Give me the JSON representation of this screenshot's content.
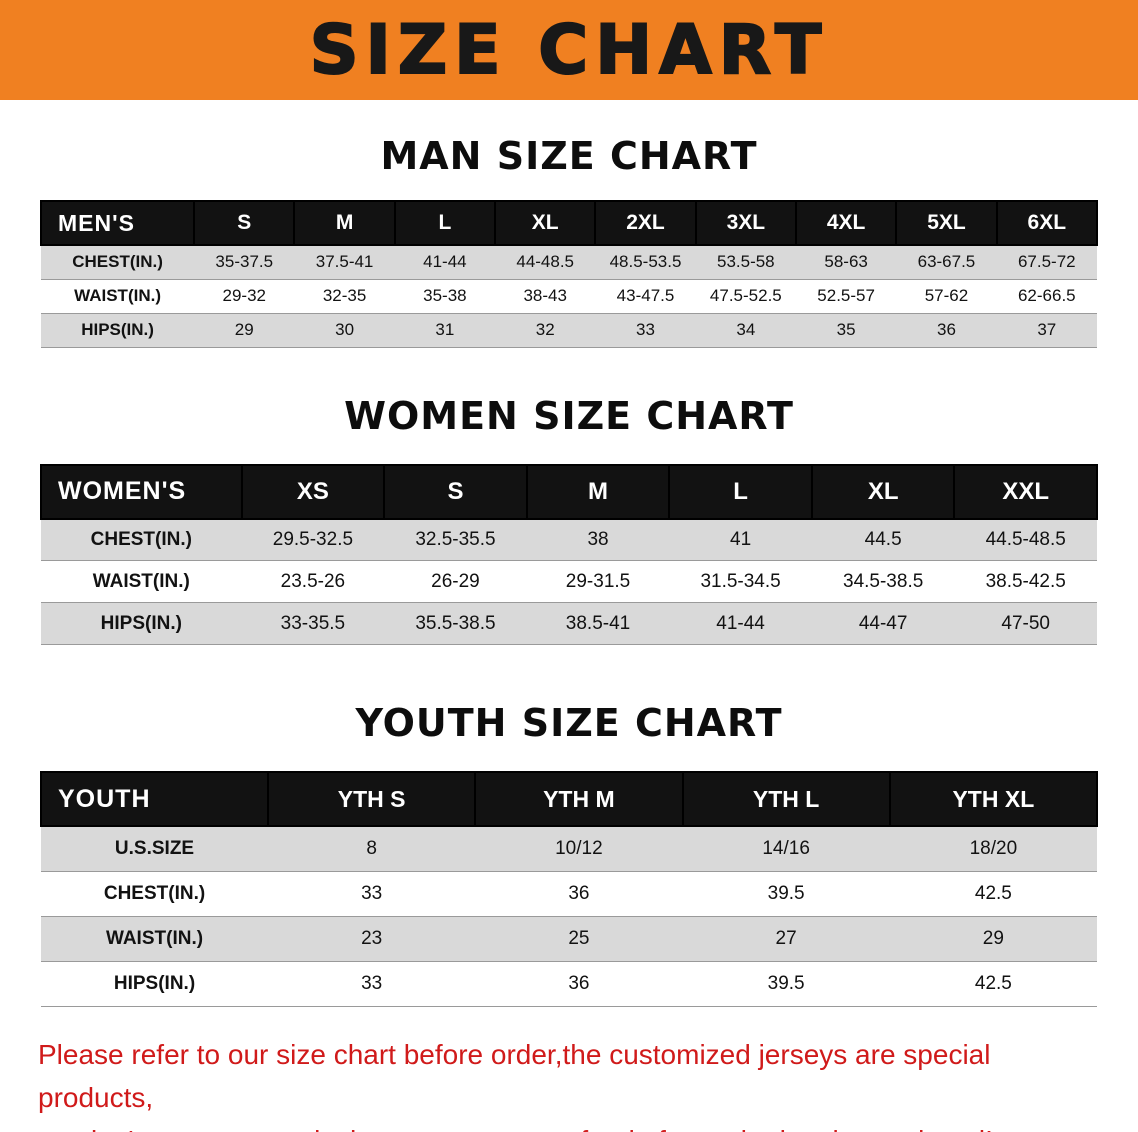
{
  "banner": {
    "title": "SIZE CHART",
    "background_color": "#F08021",
    "text_color": "#181818"
  },
  "sections": [
    {
      "title": "MAN SIZE CHART",
      "header": [
        "MEN'S",
        "S",
        "M",
        "L",
        "XL",
        "2XL",
        "3XL",
        "4XL",
        "5XL",
        "6XL"
      ],
      "rows": [
        {
          "label": "CHEST(IN.)",
          "values": [
            "35-37.5",
            "37.5-41",
            "41-44",
            "44-48.5",
            "48.5-53.5",
            "53.5-58",
            "58-63",
            "63-67.5",
            "67.5-72"
          ]
        },
        {
          "label": "WAIST(IN.)",
          "values": [
            "29-32",
            "32-35",
            "35-38",
            "38-43",
            "43-47.5",
            "47.5-52.5",
            "52.5-57",
            "57-62",
            "62-66.5"
          ]
        },
        {
          "label": "HIPS(IN.)",
          "values": [
            "29",
            "30",
            "31",
            "32",
            "33",
            "34",
            "35",
            "36",
            "37"
          ]
        }
      ]
    },
    {
      "title": "WOMEN SIZE CHART",
      "header": [
        "WOMEN'S",
        "XS",
        "S",
        "M",
        "L",
        "XL",
        "XXL"
      ],
      "rows": [
        {
          "label": "CHEST(IN.)",
          "values": [
            "29.5-32.5",
            "32.5-35.5",
            "38",
            "41",
            "44.5",
            "44.5-48.5"
          ]
        },
        {
          "label": "WAIST(IN.)",
          "values": [
            "23.5-26",
            "26-29",
            "29-31.5",
            "31.5-34.5",
            "34.5-38.5",
            "38.5-42.5"
          ]
        },
        {
          "label": "HIPS(IN.)",
          "values": [
            "33-35.5",
            "35.5-38.5",
            "38.5-41",
            "41-44",
            "44-47",
            "47-50"
          ]
        }
      ]
    },
    {
      "title": "YOUTH SIZE CHART",
      "header": [
        "YOUTH",
        "YTH S",
        "YTH M",
        "YTH L",
        "YTH XL"
      ],
      "rows": [
        {
          "label": "U.S.SIZE",
          "values": [
            "8",
            "10/12",
            "14/16",
            "18/20"
          ]
        },
        {
          "label": "CHEST(IN.)",
          "values": [
            "33",
            "36",
            "39.5",
            "42.5"
          ]
        },
        {
          "label": "WAIST(IN.)",
          "values": [
            "23",
            "25",
            "27",
            "29"
          ]
        },
        {
          "label": "HIPS(IN.)",
          "values": [
            "33",
            "36",
            "39.5",
            "42.5"
          ]
        }
      ]
    }
  ],
  "footer": {
    "line1": "Please refer to our size chart before order,the customized jerseys are special products,",
    "line2": "we don't accept cancel, change, teturn or refund after order has been placed!",
    "text_color": "#d01a1a"
  }
}
